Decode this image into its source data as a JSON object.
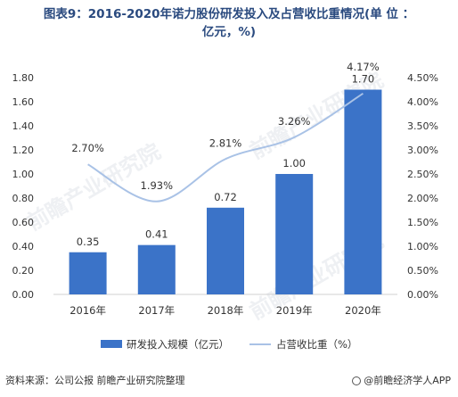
{
  "title_line1": "图表9：2016-2020年诺力股份研发投入及占营收比重情况(单 位 ：",
  "title_line2": "亿元，%)",
  "source": "资料来源：公司公报 前瞻产业研究院整理",
  "brand": "@前瞻经济学人APP",
  "watermark": "前瞻产业研究院",
  "colors": {
    "bar": "#3b73c8",
    "line": "#a9c2e6",
    "axis": "#d0d0d0",
    "text": "#333333"
  },
  "chart_data": {
    "type": "bar",
    "categories": [
      "2016年",
      "2017年",
      "2018年",
      "2019年",
      "2020年"
    ],
    "series": [
      {
        "name": "研发投入规模（亿元）",
        "type": "bar",
        "axis": "left",
        "values": [
          0.35,
          0.41,
          0.72,
          1.0,
          1.7
        ],
        "labels": [
          "0.35",
          "0.41",
          "0.72",
          "1.00",
          "1.70"
        ]
      },
      {
        "name": "占营收比重（%）",
        "type": "line",
        "axis": "right",
        "values": [
          2.7,
          1.93,
          2.81,
          3.26,
          4.17
        ],
        "labels": [
          "2.70%",
          "1.93%",
          "2.81%",
          "3.26%",
          "4.17%"
        ]
      }
    ],
    "ylim_left": [
      0,
      1.8
    ],
    "yticks_left": [
      "0.00",
      "0.20",
      "0.40",
      "0.60",
      "0.80",
      "1.00",
      "1.20",
      "1.40",
      "1.60",
      "1.80"
    ],
    "ylim_right": [
      0,
      4.5
    ],
    "yticks_right": [
      "0.00%",
      "0.50%",
      "1.00%",
      "1.50%",
      "2.00%",
      "2.50%",
      "3.00%",
      "3.50%",
      "4.00%",
      "4.50%"
    ],
    "grid": false,
    "legend": "bottom"
  }
}
